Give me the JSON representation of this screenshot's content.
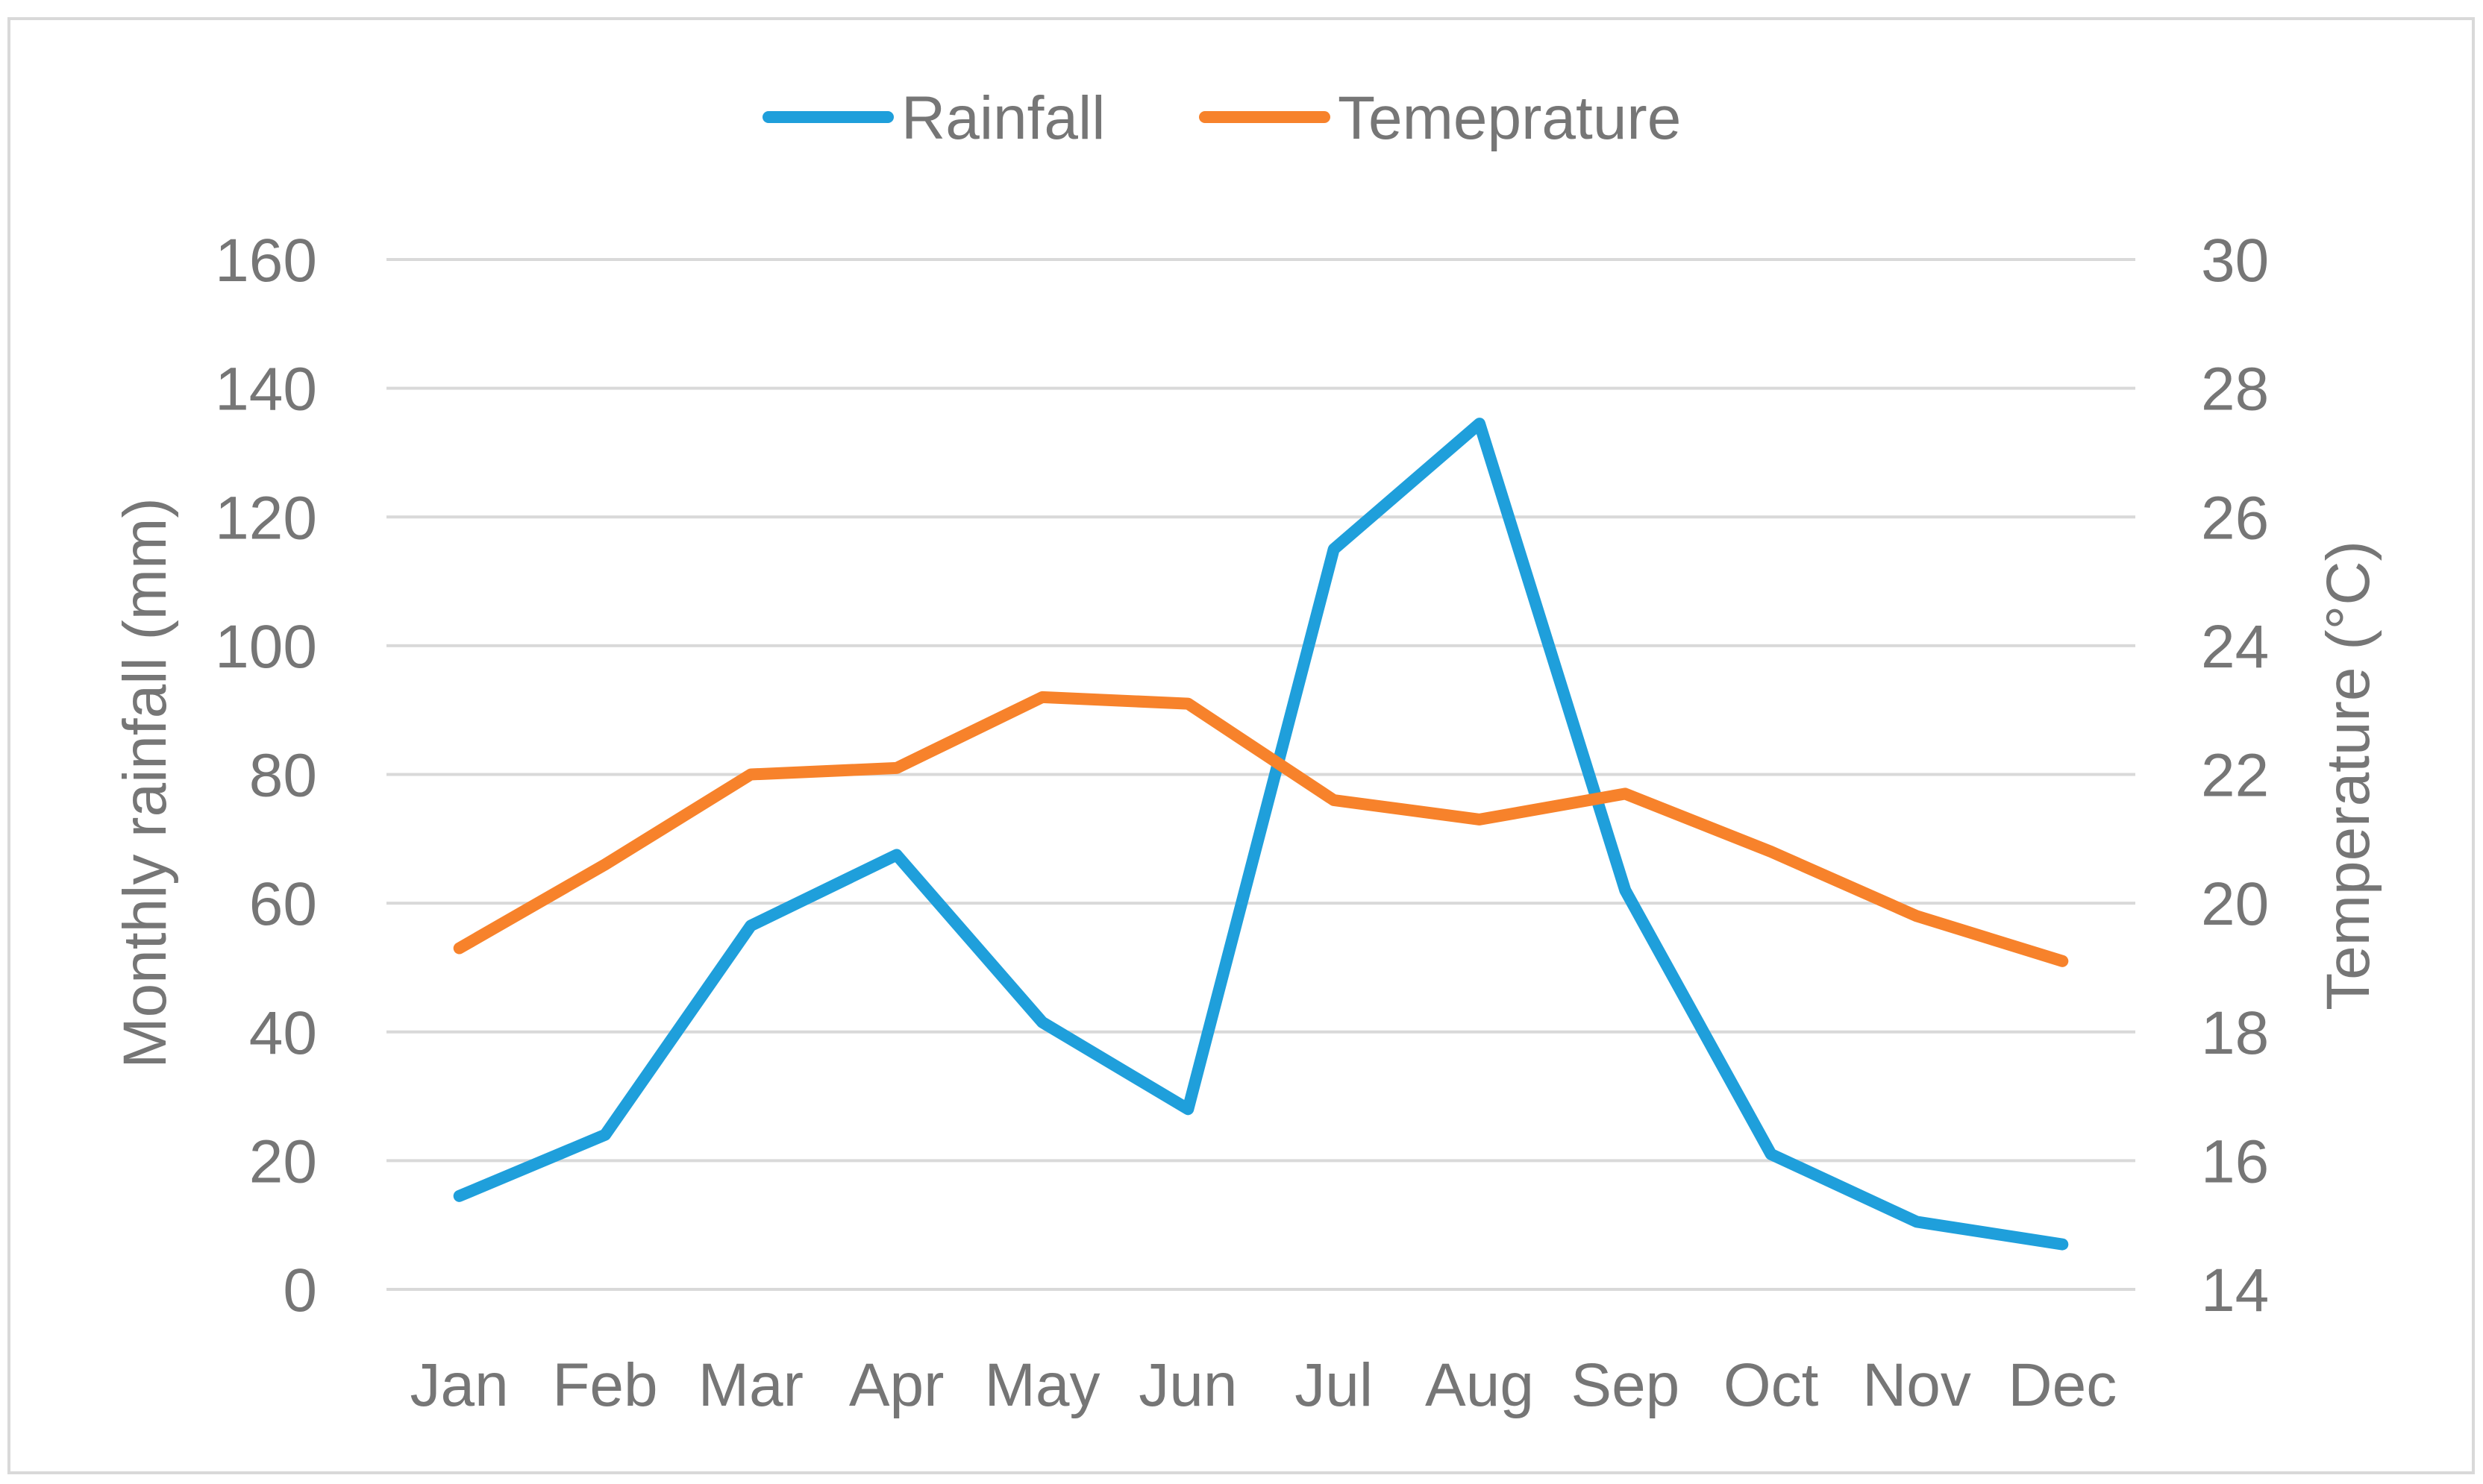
{
  "chart_data": {
    "type": "line",
    "title": "",
    "categories": [
      "Jan",
      "Feb",
      "Mar",
      "Apr",
      "May",
      "Jun",
      "Jul",
      "Aug",
      "Sep",
      "Oct",
      "Nov",
      "Dec"
    ],
    "series": [
      {
        "name": "Rainfall",
        "axis": "left",
        "color": "#1F9FDB",
        "values": [
          14.5,
          24,
          56.5,
          67.5,
          41.5,
          28,
          115,
          134.5,
          62,
          21,
          10.5,
          7
        ]
      },
      {
        "name": "Temepratu​re",
        "axis": "right",
        "color": "#F7822B",
        "values": [
          19.3,
          20.6,
          22.0,
          22.1,
          23.2,
          23.1,
          21.6,
          21.3,
          21.7,
          20.8,
          19.8,
          19.1
        ]
      }
    ],
    "ylabel": "Monthly rainfall (mm)",
    "ylim": [
      0,
      160
    ],
    "yticks": [
      "0",
      "20",
      "40",
      "60",
      "80",
      "100",
      "120",
      "140",
      "160"
    ],
    "y2label": "Temperature (°C)",
    "y2lim": [
      14,
      30
    ],
    "y2ticks": [
      "14",
      "16",
      "18",
      "20",
      "22",
      "24",
      "26",
      "28",
      "30"
    ],
    "grid": true,
    "legend_position": "top-center"
  }
}
